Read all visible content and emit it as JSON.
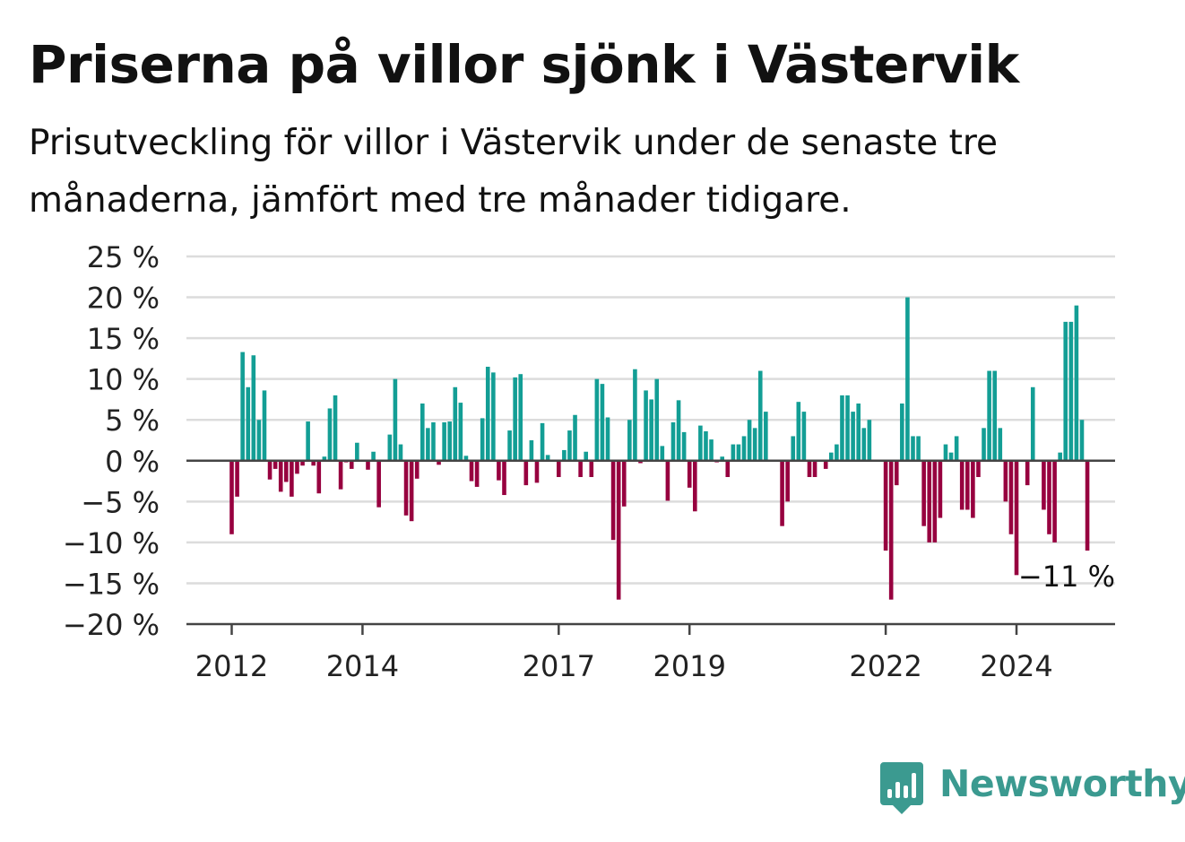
{
  "title": "Priserna på villor sjönk i Västervik",
  "subtitle": "Prisutveckling för villor i Västervik under de senaste tre månaderna, jämfört med tre månader tidigare.",
  "brand": {
    "name": "Newsworthy",
    "icon": "bar-chart-bubble-icon",
    "color": "#3b9a90"
  },
  "chart_data": {
    "type": "bar",
    "title": "Priserna på villor sjönk i Västervik",
    "xlabel": "",
    "ylabel": "",
    "ylim": [
      -20,
      25
    ],
    "yticks": [
      25,
      20,
      15,
      10,
      5,
      0,
      -5,
      -10,
      -15,
      -20
    ],
    "ytick_labels": [
      "25 %",
      "20 %",
      "15 %",
      "10 %",
      "5 %",
      "0 %",
      "−5 %",
      "−10 %",
      "−15 %",
      "−20 %"
    ],
    "xticks": [
      {
        "label": "2012",
        "index": 0
      },
      {
        "label": "2014",
        "index": 24
      },
      {
        "label": "2017",
        "index": 60
      },
      {
        "label": "2019",
        "index": 84
      },
      {
        "label": "2022",
        "index": 120
      },
      {
        "label": "2024",
        "index": 144
      }
    ],
    "grid": true,
    "colors": {
      "positive": "#139e95",
      "negative": "#97003f"
    },
    "annotation": {
      "label": "−11 %",
      "index": 155
    },
    "values": [
      -9,
      -4.4,
      13.3,
      9,
      12.9,
      5,
      8.6,
      -2.3,
      -1,
      -3.8,
      -2.6,
      -4.4,
      -1.6,
      -0.6,
      4.8,
      -0.6,
      -4,
      0.5,
      6.4,
      8,
      -3.5,
      -0.2,
      -1,
      2.2,
      0,
      -1.1,
      1.1,
      -5.7,
      0,
      3.2,
      10,
      2,
      -6.7,
      -7.4,
      -2.2,
      7,
      4,
      4.7,
      -0.5,
      4.7,
      4.8,
      9,
      7.1,
      0.6,
      -2.5,
      -3.2,
      5.2,
      11.5,
      10.8,
      -2.4,
      -4.2,
      3.7,
      10.2,
      10.6,
      -3,
      2.5,
      -2.7,
      4.6,
      0.7,
      0,
      -2,
      1.3,
      3.7,
      5.6,
      -2,
      1.1,
      -2,
      10,
      9.4,
      5.3,
      -9.7,
      -17,
      -5.6,
      5,
      11.2,
      -0.3,
      8.6,
      7.5,
      10,
      1.8,
      -4.9,
      4.7,
      7.4,
      3.5,
      -3.3,
      -6.2,
      4.3,
      3.6,
      2.6,
      -0.2,
      0.5,
      -2,
      2,
      2,
      3,
      5,
      4,
      11,
      6,
      0,
      0,
      -8,
      -5,
      3,
      7.2,
      6,
      -2,
      -2,
      0,
      -1,
      1,
      2,
      8,
      8,
      6,
      7,
      4,
      5,
      0,
      0,
      -11,
      -17,
      -3,
      7,
      20,
      3,
      3,
      -8,
      -10,
      -10,
      -7,
      2,
      1,
      3,
      -6,
      -6,
      -7,
      -2,
      4,
      11,
      11,
      4,
      -5,
      -9,
      -14,
      0,
      -3,
      9,
      0,
      -6,
      -9,
      -10,
      1,
      17,
      17,
      19,
      5,
      -11
    ]
  }
}
